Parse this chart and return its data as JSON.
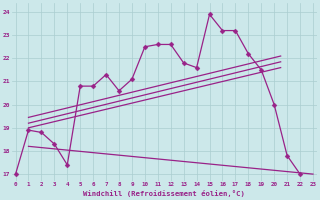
{
  "x_values": [
    0,
    1,
    2,
    3,
    4,
    5,
    6,
    7,
    8,
    9,
    10,
    11,
    12,
    13,
    14,
    15,
    16,
    17,
    18,
    19,
    20,
    21,
    22,
    23
  ],
  "main_line": [
    17.0,
    18.9,
    18.8,
    18.3,
    17.4,
    20.8,
    20.8,
    21.3,
    20.6,
    21.1,
    22.5,
    22.6,
    22.6,
    21.8,
    21.6,
    23.9,
    23.2,
    23.2,
    22.2,
    21.5,
    20.0,
    17.8,
    17.0,
    null
  ],
  "trend_lines": [
    {
      "x0": 1.0,
      "y0": 19.0,
      "x1": 20.5,
      "y1": 21.6
    },
    {
      "x0": 1.0,
      "y0": 19.2,
      "x1": 20.5,
      "y1": 21.85
    },
    {
      "x0": 1.0,
      "y0": 19.45,
      "x1": 20.5,
      "y1": 22.1
    }
  ],
  "decline_line": {
    "x0": 1.0,
    "y0": 18.2,
    "x1": 23.0,
    "y1": 17.0
  },
  "line_color": "#992288",
  "bg_color": "#cce8ea",
  "grid_color": "#aacdd0",
  "ylabel_vals": [
    17,
    18,
    19,
    20,
    21,
    22,
    23,
    24
  ],
  "ylim": [
    16.7,
    24.4
  ],
  "xlim": [
    -0.3,
    23.3
  ],
  "xlabel": "Windchill (Refroidissement éolien,°C)",
  "marker": "D",
  "markersize": 2.5,
  "linewidth": 0.9
}
